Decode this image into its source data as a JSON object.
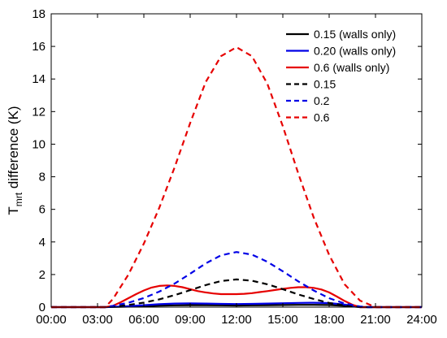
{
  "chart_data": {
    "type": "line",
    "title": "",
    "xlabel": "",
    "ylabel": {
      "base": "T",
      "sub": "mrt",
      "rest": " difference (K)"
    },
    "xlim": [
      0,
      24
    ],
    "ylim": [
      0,
      18
    ],
    "x_ticks": [
      {
        "value": 0,
        "label": "00:00"
      },
      {
        "value": 3,
        "label": "03:00"
      },
      {
        "value": 6,
        "label": "06:00"
      },
      {
        "value": 9,
        "label": "09:00"
      },
      {
        "value": 12,
        "label": "12:00"
      },
      {
        "value": 15,
        "label": "15:00"
      },
      {
        "value": 18,
        "label": "18:00"
      },
      {
        "value": 21,
        "label": "21:00"
      },
      {
        "value": 24,
        "label": "24:00"
      }
    ],
    "y_ticks": [
      {
        "value": 0,
        "label": "0"
      },
      {
        "value": 2,
        "label": "2"
      },
      {
        "value": 4,
        "label": "4"
      },
      {
        "value": 6,
        "label": "6"
      },
      {
        "value": 8,
        "label": "8"
      },
      {
        "value": 10,
        "label": "10"
      },
      {
        "value": 12,
        "label": "12"
      },
      {
        "value": 14,
        "label": "14"
      },
      {
        "value": 16,
        "label": "16"
      },
      {
        "value": 18,
        "label": "18"
      }
    ],
    "grid": false,
    "legend_position": "top-right",
    "series": [
      {
        "name": "0.15 (walls only)",
        "color": "#000000",
        "style": "solid",
        "x": [
          0,
          3.5,
          4,
          5,
          6,
          7,
          8,
          9,
          10,
          11,
          12,
          13,
          14,
          15,
          16,
          17,
          18,
          19,
          19.5,
          20,
          24
        ],
        "y": [
          0,
          0,
          0.01,
          0.03,
          0.06,
          0.09,
          0.11,
          0.12,
          0.12,
          0.11,
          0.1,
          0.11,
          0.12,
          0.13,
          0.14,
          0.14,
          0.13,
          0.08,
          0.04,
          0,
          0
        ]
      },
      {
        "name": "0.20 (walls only)",
        "color": "#0000e6",
        "style": "solid",
        "x": [
          0,
          3.5,
          4,
          5,
          6,
          7,
          8,
          9,
          10,
          11,
          12,
          13,
          14,
          15,
          16,
          17,
          18,
          19,
          19.5,
          20,
          24
        ],
        "y": [
          0,
          0,
          0.02,
          0.06,
          0.12,
          0.18,
          0.22,
          0.23,
          0.22,
          0.2,
          0.19,
          0.2,
          0.22,
          0.24,
          0.26,
          0.27,
          0.25,
          0.16,
          0.08,
          0,
          0
        ]
      },
      {
        "name": "0.6 (walls only)",
        "color": "#e60000",
        "style": "solid",
        "x": [
          0,
          3.5,
          4,
          4.5,
          5,
          5.5,
          6,
          6.5,
          7,
          7.5,
          8,
          8.5,
          9,
          9.5,
          10,
          10.5,
          11,
          11.5,
          12,
          12.5,
          13,
          13.5,
          14,
          14.5,
          15,
          15.5,
          16,
          16.5,
          17,
          17.5,
          18,
          18.5,
          19,
          19.5,
          20,
          24
        ],
        "y": [
          0,
          0,
          0.08,
          0.3,
          0.55,
          0.8,
          1.02,
          1.2,
          1.3,
          1.33,
          1.3,
          1.22,
          1.1,
          0.98,
          0.9,
          0.84,
          0.8,
          0.8,
          0.8,
          0.82,
          0.86,
          0.92,
          0.98,
          1.05,
          1.12,
          1.18,
          1.22,
          1.22,
          1.18,
          1.08,
          0.9,
          0.65,
          0.38,
          0.15,
          0,
          0
        ]
      },
      {
        "name": "0.15",
        "color": "#000000",
        "style": "dashed",
        "x": [
          0,
          3.5,
          4,
          5,
          6,
          7,
          8,
          9,
          10,
          11,
          12,
          13,
          14,
          15,
          16,
          17,
          18,
          19,
          20,
          20.5,
          24
        ],
        "y": [
          0,
          0,
          0.04,
          0.13,
          0.28,
          0.48,
          0.74,
          1.04,
          1.35,
          1.6,
          1.7,
          1.62,
          1.4,
          1.1,
          0.78,
          0.5,
          0.26,
          0.1,
          0.02,
          0,
          0
        ]
      },
      {
        "name": "0.2",
        "color": "#0000e6",
        "style": "dashed",
        "x": [
          0,
          3.5,
          4,
          5,
          6,
          7,
          8,
          9,
          10,
          11,
          12,
          13,
          14,
          15,
          16,
          17,
          18,
          19,
          20,
          20.5,
          24
        ],
        "y": [
          0,
          0,
          0.08,
          0.27,
          0.56,
          0.95,
          1.45,
          2.05,
          2.68,
          3.18,
          3.38,
          3.22,
          2.78,
          2.2,
          1.58,
          1.02,
          0.55,
          0.22,
          0.04,
          0,
          0
        ]
      },
      {
        "name": "0.6",
        "color": "#e60000",
        "style": "dashed",
        "x": [
          0,
          3.5,
          4,
          5,
          6,
          7,
          8,
          9,
          10,
          11,
          12,
          13,
          14,
          15,
          16,
          17,
          18,
          19,
          20,
          21,
          24
        ],
        "y": [
          0,
          0,
          0.5,
          2.0,
          3.9,
          6.1,
          8.6,
          11.3,
          13.8,
          15.4,
          15.95,
          15.4,
          13.7,
          11.1,
          8.2,
          5.5,
          3.2,
          1.4,
          0.4,
          0,
          0
        ]
      }
    ]
  }
}
